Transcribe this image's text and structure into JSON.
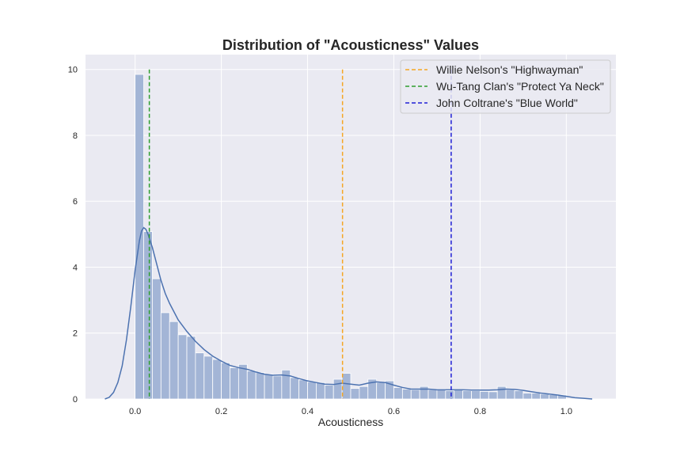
{
  "chart_data": {
    "type": "bar",
    "title": "Distribution of \"Acousticness\" Values",
    "xlabel": "Acousticness",
    "ylabel": "",
    "xlim": [
      -0.115,
      1.115
    ],
    "ylim": [
      0,
      10.45
    ],
    "xticks": [
      "0.0",
      "0.2",
      "0.4",
      "0.6",
      "0.8",
      "1.0"
    ],
    "yticks": [
      "0",
      "2",
      "4",
      "6",
      "8",
      "10"
    ],
    "grid": true,
    "legend_position": "top-right",
    "bin_width": 0.02,
    "histogram_bins_start": [
      0.0,
      0.02,
      0.04,
      0.06,
      0.08,
      0.1,
      0.12,
      0.14,
      0.16,
      0.18,
      0.2,
      0.22,
      0.24,
      0.26,
      0.28,
      0.3,
      0.32,
      0.34,
      0.36,
      0.38,
      0.4,
      0.42,
      0.44,
      0.46,
      0.48,
      0.5,
      0.52,
      0.54,
      0.56,
      0.58,
      0.6,
      0.62,
      0.64,
      0.66,
      0.68,
      0.7,
      0.72,
      0.74,
      0.76,
      0.78,
      0.8,
      0.82,
      0.84,
      0.86,
      0.88,
      0.9,
      0.92,
      0.94,
      0.96,
      0.98
    ],
    "histogram_density": [
      9.85,
      5.08,
      3.65,
      2.62,
      2.35,
      1.95,
      1.9,
      1.4,
      1.3,
      1.2,
      1.1,
      0.95,
      1.05,
      0.85,
      0.8,
      0.75,
      0.7,
      0.88,
      0.65,
      0.58,
      0.52,
      0.5,
      0.42,
      0.6,
      0.78,
      0.32,
      0.38,
      0.6,
      0.5,
      0.55,
      0.35,
      0.3,
      0.28,
      0.38,
      0.28,
      0.3,
      0.25,
      0.28,
      0.25,
      0.25,
      0.23,
      0.22,
      0.38,
      0.28,
      0.25,
      0.18,
      0.18,
      0.15,
      0.13,
      0.12
    ],
    "kde": {
      "color": "#4c72b0",
      "x": [
        -0.07,
        -0.06,
        -0.05,
        -0.04,
        -0.03,
        -0.02,
        -0.01,
        0.0,
        0.01,
        0.015,
        0.02,
        0.025,
        0.03,
        0.04,
        0.05,
        0.06,
        0.07,
        0.08,
        0.1,
        0.12,
        0.14,
        0.16,
        0.18,
        0.2,
        0.22,
        0.24,
        0.26,
        0.28,
        0.3,
        0.32,
        0.34,
        0.36,
        0.38,
        0.4,
        0.42,
        0.44,
        0.46,
        0.48,
        0.5,
        0.52,
        0.54,
        0.56,
        0.58,
        0.6,
        0.62,
        0.64,
        0.66,
        0.68,
        0.7,
        0.72,
        0.74,
        0.76,
        0.78,
        0.8,
        0.82,
        0.84,
        0.86,
        0.88,
        0.9,
        0.92,
        0.94,
        0.96,
        0.98,
        1.0,
        1.02,
        1.04,
        1.06
      ],
      "y": [
        0.0,
        0.05,
        0.2,
        0.5,
        1.0,
        1.8,
        2.8,
        3.9,
        4.8,
        5.1,
        5.2,
        5.15,
        5.0,
        4.6,
        4.1,
        3.6,
        3.2,
        2.9,
        2.4,
        2.05,
        1.75,
        1.5,
        1.3,
        1.15,
        1.02,
        0.95,
        0.9,
        0.82,
        0.75,
        0.72,
        0.73,
        0.7,
        0.62,
        0.55,
        0.5,
        0.45,
        0.44,
        0.48,
        0.45,
        0.42,
        0.48,
        0.52,
        0.5,
        0.42,
        0.35,
        0.3,
        0.3,
        0.3,
        0.28,
        0.28,
        0.28,
        0.28,
        0.27,
        0.27,
        0.27,
        0.28,
        0.3,
        0.29,
        0.26,
        0.22,
        0.18,
        0.15,
        0.12,
        0.08,
        0.04,
        0.02,
        0.0
      ]
    },
    "reference_lines": [
      {
        "name": "Willie Nelson's \"Highwayman\"",
        "x": 0.481,
        "color": "#f5a623"
      },
      {
        "name": "Wu-Tang Clan's \"Protect Ya Neck\"",
        "x": 0.033,
        "color": "#2e9e2e"
      },
      {
        "name": "John Coltrane's \"Blue World\"",
        "x": 0.733,
        "color": "#1f1fd6"
      }
    ],
    "reference_line_top": 10.0,
    "colors": {
      "background": "#eaeaf2",
      "grid": "#ffffff",
      "bars": "#a3b5d6",
      "bar_edge": "#ffffff",
      "legend_fill": "#eaeaf2",
      "legend_edge": "#cccccc"
    }
  }
}
